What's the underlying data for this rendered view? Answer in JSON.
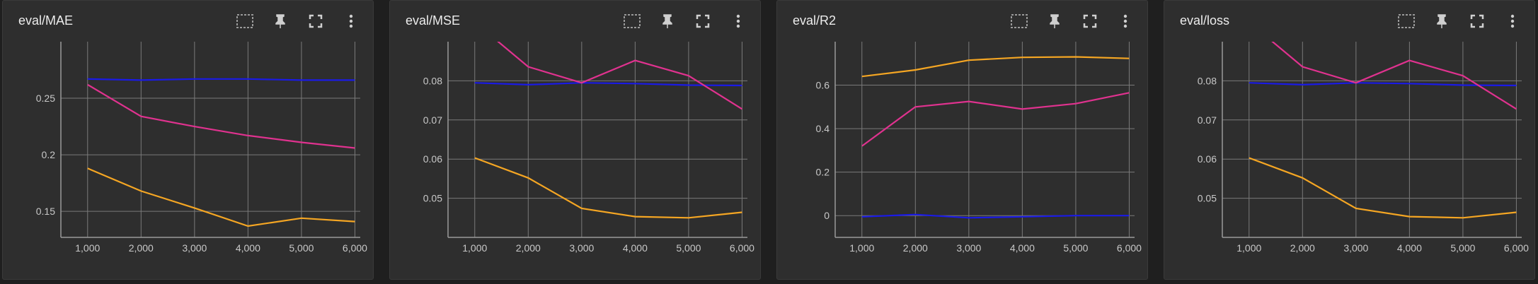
{
  "panels": [
    {
      "title": "eval/MAE",
      "tools": {
        "select": "select-icon",
        "pin": "pin-icon",
        "fullscreen": "fullscreen-icon",
        "menu": "more-vert-icon"
      }
    },
    {
      "title": "eval/MSE",
      "tools": {
        "select": "select-icon",
        "pin": "pin-icon",
        "fullscreen": "fullscreen-icon",
        "menu": "more-vert-icon"
      }
    },
    {
      "title": "eval/R2",
      "tools": {
        "select": "select-icon",
        "pin": "pin-icon",
        "fullscreen": "fullscreen-icon",
        "menu": "more-vert-icon"
      }
    },
    {
      "title": "eval/loss",
      "tools": {
        "select": "select-icon",
        "pin": "pin-icon",
        "fullscreen": "fullscreen-icon",
        "menu": "more-vert-icon"
      }
    }
  ],
  "colors": {
    "blue": "#1a1ae6",
    "pink": "#e0328f",
    "orange": "#f5a623",
    "grid": "#7a7a7a",
    "tick": "#c8c8c8"
  },
  "chart_data": [
    {
      "type": "line",
      "x": [
        1000,
        2000,
        3000,
        4000,
        5000,
        6000
      ],
      "x_tick_labels": [
        "1,000",
        "2,000",
        "3,000",
        "4,000",
        "5,000",
        "6,000"
      ],
      "y_ticks": [
        0.15,
        0.2,
        0.25
      ],
      "y_tick_labels": [
        "0.15",
        "0.2",
        "0.25"
      ],
      "ylim": [
        0.127,
        0.3
      ],
      "grid": true,
      "series": [
        {
          "color": "blue",
          "values": [
            0.267,
            0.266,
            0.267,
            0.267,
            0.266,
            0.266
          ]
        },
        {
          "color": "pink",
          "values": [
            0.262,
            0.234,
            0.225,
            0.217,
            0.211,
            0.206
          ]
        },
        {
          "color": "orange",
          "values": [
            0.188,
            0.168,
            0.153,
            0.137,
            0.144,
            0.141
          ]
        }
      ]
    },
    {
      "type": "line",
      "x": [
        1000,
        2000,
        3000,
        4000,
        5000,
        6000
      ],
      "x_tick_labels": [
        "1,000",
        "2,000",
        "3,000",
        "4,000",
        "5,000",
        "6,000"
      ],
      "y_ticks": [
        0.05,
        0.06,
        0.07,
        0.08
      ],
      "y_tick_labels": [
        "0.05",
        "0.06",
        "0.07",
        "0.08"
      ],
      "ylim": [
        0.04,
        0.09
      ],
      "grid": true,
      "series": [
        {
          "color": "blue",
          "values": [
            0.0795,
            0.079,
            0.0795,
            0.0793,
            0.0789,
            0.0788
          ]
        },
        {
          "color": "pink",
          "values": [
            0.095,
            0.0836,
            0.0795,
            0.0852,
            0.0813,
            0.0728
          ]
        },
        {
          "color": "orange",
          "values": [
            0.0603,
            0.0552,
            0.0474,
            0.0453,
            0.045,
            0.0464
          ]
        }
      ]
    },
    {
      "type": "line",
      "x": [
        1000,
        2000,
        3000,
        4000,
        5000,
        6000
      ],
      "x_tick_labels": [
        "1,000",
        "2,000",
        "3,000",
        "4,000",
        "5,000",
        "6,000"
      ],
      "y_ticks": [
        0,
        0.2,
        0.4,
        0.6
      ],
      "y_tick_labels": [
        "0",
        "0.2",
        "0.4",
        "0.6"
      ],
      "ylim": [
        -0.1,
        0.8
      ],
      "grid": true,
      "series": [
        {
          "color": "orange",
          "values": [
            0.64,
            0.67,
            0.715,
            0.728,
            0.73,
            0.723
          ]
        },
        {
          "color": "pink",
          "values": [
            0.32,
            0.5,
            0.525,
            0.49,
            0.515,
            0.565
          ]
        },
        {
          "color": "blue",
          "values": [
            -0.005,
            0.005,
            -0.01,
            -0.005,
            0.0,
            0.0
          ]
        }
      ]
    },
    {
      "type": "line",
      "x": [
        1000,
        2000,
        3000,
        4000,
        5000,
        6000
      ],
      "x_tick_labels": [
        "1,000",
        "2,000",
        "3,000",
        "4,000",
        "5,000",
        "6,000"
      ],
      "y_ticks": [
        0.05,
        0.06,
        0.07,
        0.08
      ],
      "y_tick_labels": [
        "0.05",
        "0.06",
        "0.07",
        "0.08"
      ],
      "ylim": [
        0.04,
        0.09
      ],
      "grid": true,
      "series": [
        {
          "color": "blue",
          "values": [
            0.0795,
            0.079,
            0.0795,
            0.0793,
            0.0789,
            0.0788
          ]
        },
        {
          "color": "pink",
          "values": [
            0.095,
            0.0836,
            0.0795,
            0.0852,
            0.0813,
            0.0728
          ]
        },
        {
          "color": "orange",
          "values": [
            0.0603,
            0.0552,
            0.0474,
            0.0453,
            0.045,
            0.0464
          ]
        }
      ]
    }
  ]
}
